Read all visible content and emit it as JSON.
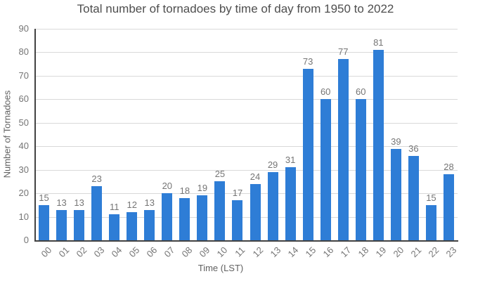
{
  "chart_data": {
    "type": "bar",
    "title": "Total number of tornadoes by time of day from 1950 to 2022",
    "xlabel": "Time (LST)",
    "ylabel": "Number of Tornadoes",
    "categories": [
      "00",
      "01",
      "02",
      "03",
      "04",
      "05",
      "06",
      "07",
      "08",
      "09",
      "10",
      "11",
      "12",
      "13",
      "14",
      "15",
      "16",
      "17",
      "18",
      "19",
      "20",
      "21",
      "22",
      "23"
    ],
    "values": [
      15,
      13,
      13,
      23,
      11,
      12,
      13,
      20,
      18,
      19,
      25,
      17,
      24,
      29,
      31,
      73,
      60,
      77,
      60,
      81,
      39,
      36,
      15,
      28
    ],
    "ylim": [
      0,
      90
    ],
    "ytick_step": 10,
    "grid": "horizontal",
    "legend": "none",
    "value_labels": true,
    "colors": {
      "bar": "#2e7dd6",
      "grid": "#d9d9d9",
      "axis_line": "#424242",
      "title_text": "#4e4e4e",
      "tick_text": "#757575",
      "axis_title_text": "#616161"
    }
  }
}
